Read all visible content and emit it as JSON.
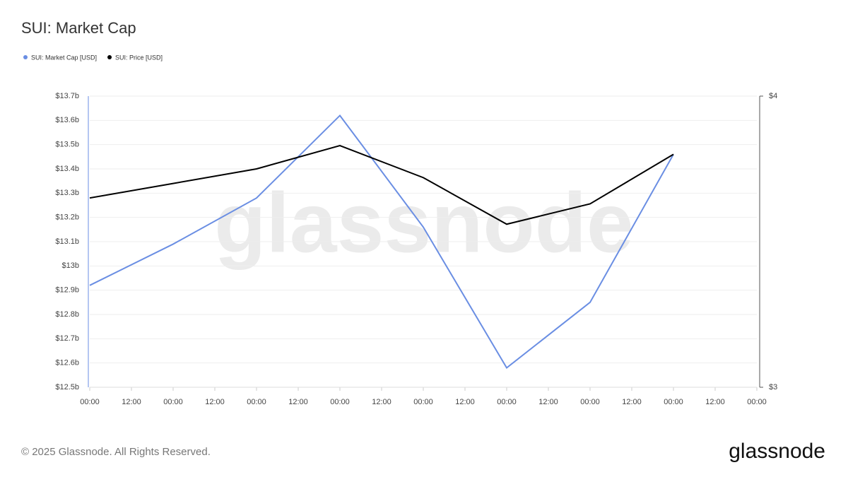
{
  "chart_data": {
    "type": "line",
    "title": "SUI: Market Cap",
    "watermark": "glassnode",
    "x": [
      0,
      2,
      4,
      6,
      8,
      10,
      12,
      14
    ],
    "xlim": [
      0,
      16
    ],
    "xticks": [
      {
        "value": 0,
        "label": "00:00"
      },
      {
        "value": 1,
        "label": "12:00"
      },
      {
        "value": 2,
        "label": "00:00"
      },
      {
        "value": 3,
        "label": "12:00"
      },
      {
        "value": 4,
        "label": "00:00"
      },
      {
        "value": 5,
        "label": "12:00"
      },
      {
        "value": 6,
        "label": "00:00"
      },
      {
        "value": 7,
        "label": "12:00"
      },
      {
        "value": 8,
        "label": "00:00"
      },
      {
        "value": 9,
        "label": "12:00"
      },
      {
        "value": 10,
        "label": "00:00"
      },
      {
        "value": 11,
        "label": "12:00"
      },
      {
        "value": 12,
        "label": "00:00"
      },
      {
        "value": 13,
        "label": "12:00"
      },
      {
        "value": 14,
        "label": "00:00"
      },
      {
        "value": 15,
        "label": "12:00"
      },
      {
        "value": 16,
        "label": "00:00"
      }
    ],
    "ylim": [
      12.5,
      13.7
    ],
    "yticks": [
      {
        "value": 12.5,
        "label": "$12.5b"
      },
      {
        "value": 12.6,
        "label": "$12.6b"
      },
      {
        "value": 12.7,
        "label": "$12.7b"
      },
      {
        "value": 12.8,
        "label": "$12.8b"
      },
      {
        "value": 12.9,
        "label": "$12.9b"
      },
      {
        "value": 13,
        "label": "$13b"
      },
      {
        "value": 13.1,
        "label": "$13.1b"
      },
      {
        "value": 13.2,
        "label": "$13.2b"
      },
      {
        "value": 13.3,
        "label": "$13.3b"
      },
      {
        "value": 13.4,
        "label": "$13.4b"
      },
      {
        "value": 13.5,
        "label": "$13.5b"
      },
      {
        "value": 13.6,
        "label": "$13.6b"
      },
      {
        "value": 13.7,
        "label": "$13.7b"
      }
    ],
    "y2lim": [
      3,
      4
    ],
    "y2ticks": [
      {
        "value": 3,
        "label": "$3"
      },
      {
        "value": 4,
        "label": "$4"
      }
    ],
    "grid": true,
    "series": [
      {
        "name": "SUI: Market Cap [USD]",
        "color": "#6a8ee3",
        "values": [
          12.92,
          13.09,
          13.28,
          13.62,
          13.16,
          12.58,
          12.85,
          13.46
        ]
      },
      {
        "name": "SUI: Price [USD]",
        "color": "#000000",
        "axis": "y2",
        "values": [
          3.65,
          3.7,
          3.75,
          3.83,
          3.72,
          3.56,
          3.63,
          3.8
        ]
      }
    ]
  },
  "footer": {
    "copyright": "© 2025 Glassnode. All Rights Reserved.",
    "logo": "glassnode"
  }
}
